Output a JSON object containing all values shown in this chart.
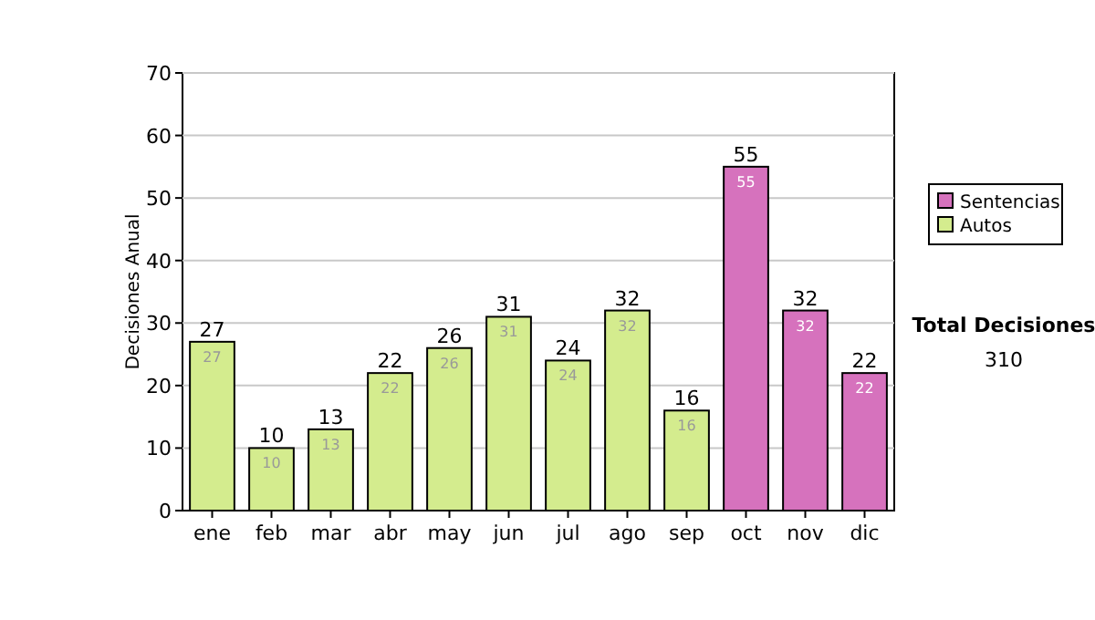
{
  "chart_data": {
    "type": "bar",
    "ylabel": "Decisiones Anual",
    "categories": [
      "ene",
      "feb",
      "mar",
      "abr",
      "may",
      "jun",
      "jul",
      "ago",
      "sep",
      "oct",
      "nov",
      "dic"
    ],
    "series": [
      {
        "name": "Sentencias",
        "color": "#d672bd",
        "values": [
          null,
          null,
          null,
          null,
          null,
          null,
          null,
          null,
          null,
          55,
          32,
          22
        ]
      },
      {
        "name": "Autos",
        "color": "#d4ec8e",
        "values": [
          27,
          10,
          13,
          22,
          26,
          31,
          24,
          32,
          16,
          null,
          null,
          null
        ]
      }
    ],
    "ylim": [
      0,
      70
    ],
    "yticks": [
      0,
      10,
      20,
      30,
      40,
      50,
      60,
      70
    ],
    "grid": "y",
    "legend": "right",
    "data_labels": true,
    "annotations": [
      "Total Decisiones",
      "310",
      {
        "text": "27",
        "x": "ene",
        "y": 27
      },
      {
        "text": "10",
        "x": "feb",
        "y": 10
      },
      {
        "text": "13",
        "x": "mar",
        "y": 13
      },
      {
        "text": "22",
        "x": "abr",
        "y": 22
      },
      {
        "text": "26",
        "x": "may",
        "y": 26
      },
      {
        "text": "31",
        "x": "jun",
        "y": 31
      },
      {
        "text": "24",
        "x": "jul",
        "y": 24
      },
      {
        "text": "32",
        "x": "ago",
        "y": 32
      },
      {
        "text": "16",
        "x": "sep",
        "y": 16
      },
      {
        "text": "55",
        "x": "oct",
        "y": 55
      },
      {
        "text": "32",
        "x": "nov",
        "y": 32
      },
      {
        "text": "22",
        "x": "dic",
        "y": 22
      }
    ]
  }
}
